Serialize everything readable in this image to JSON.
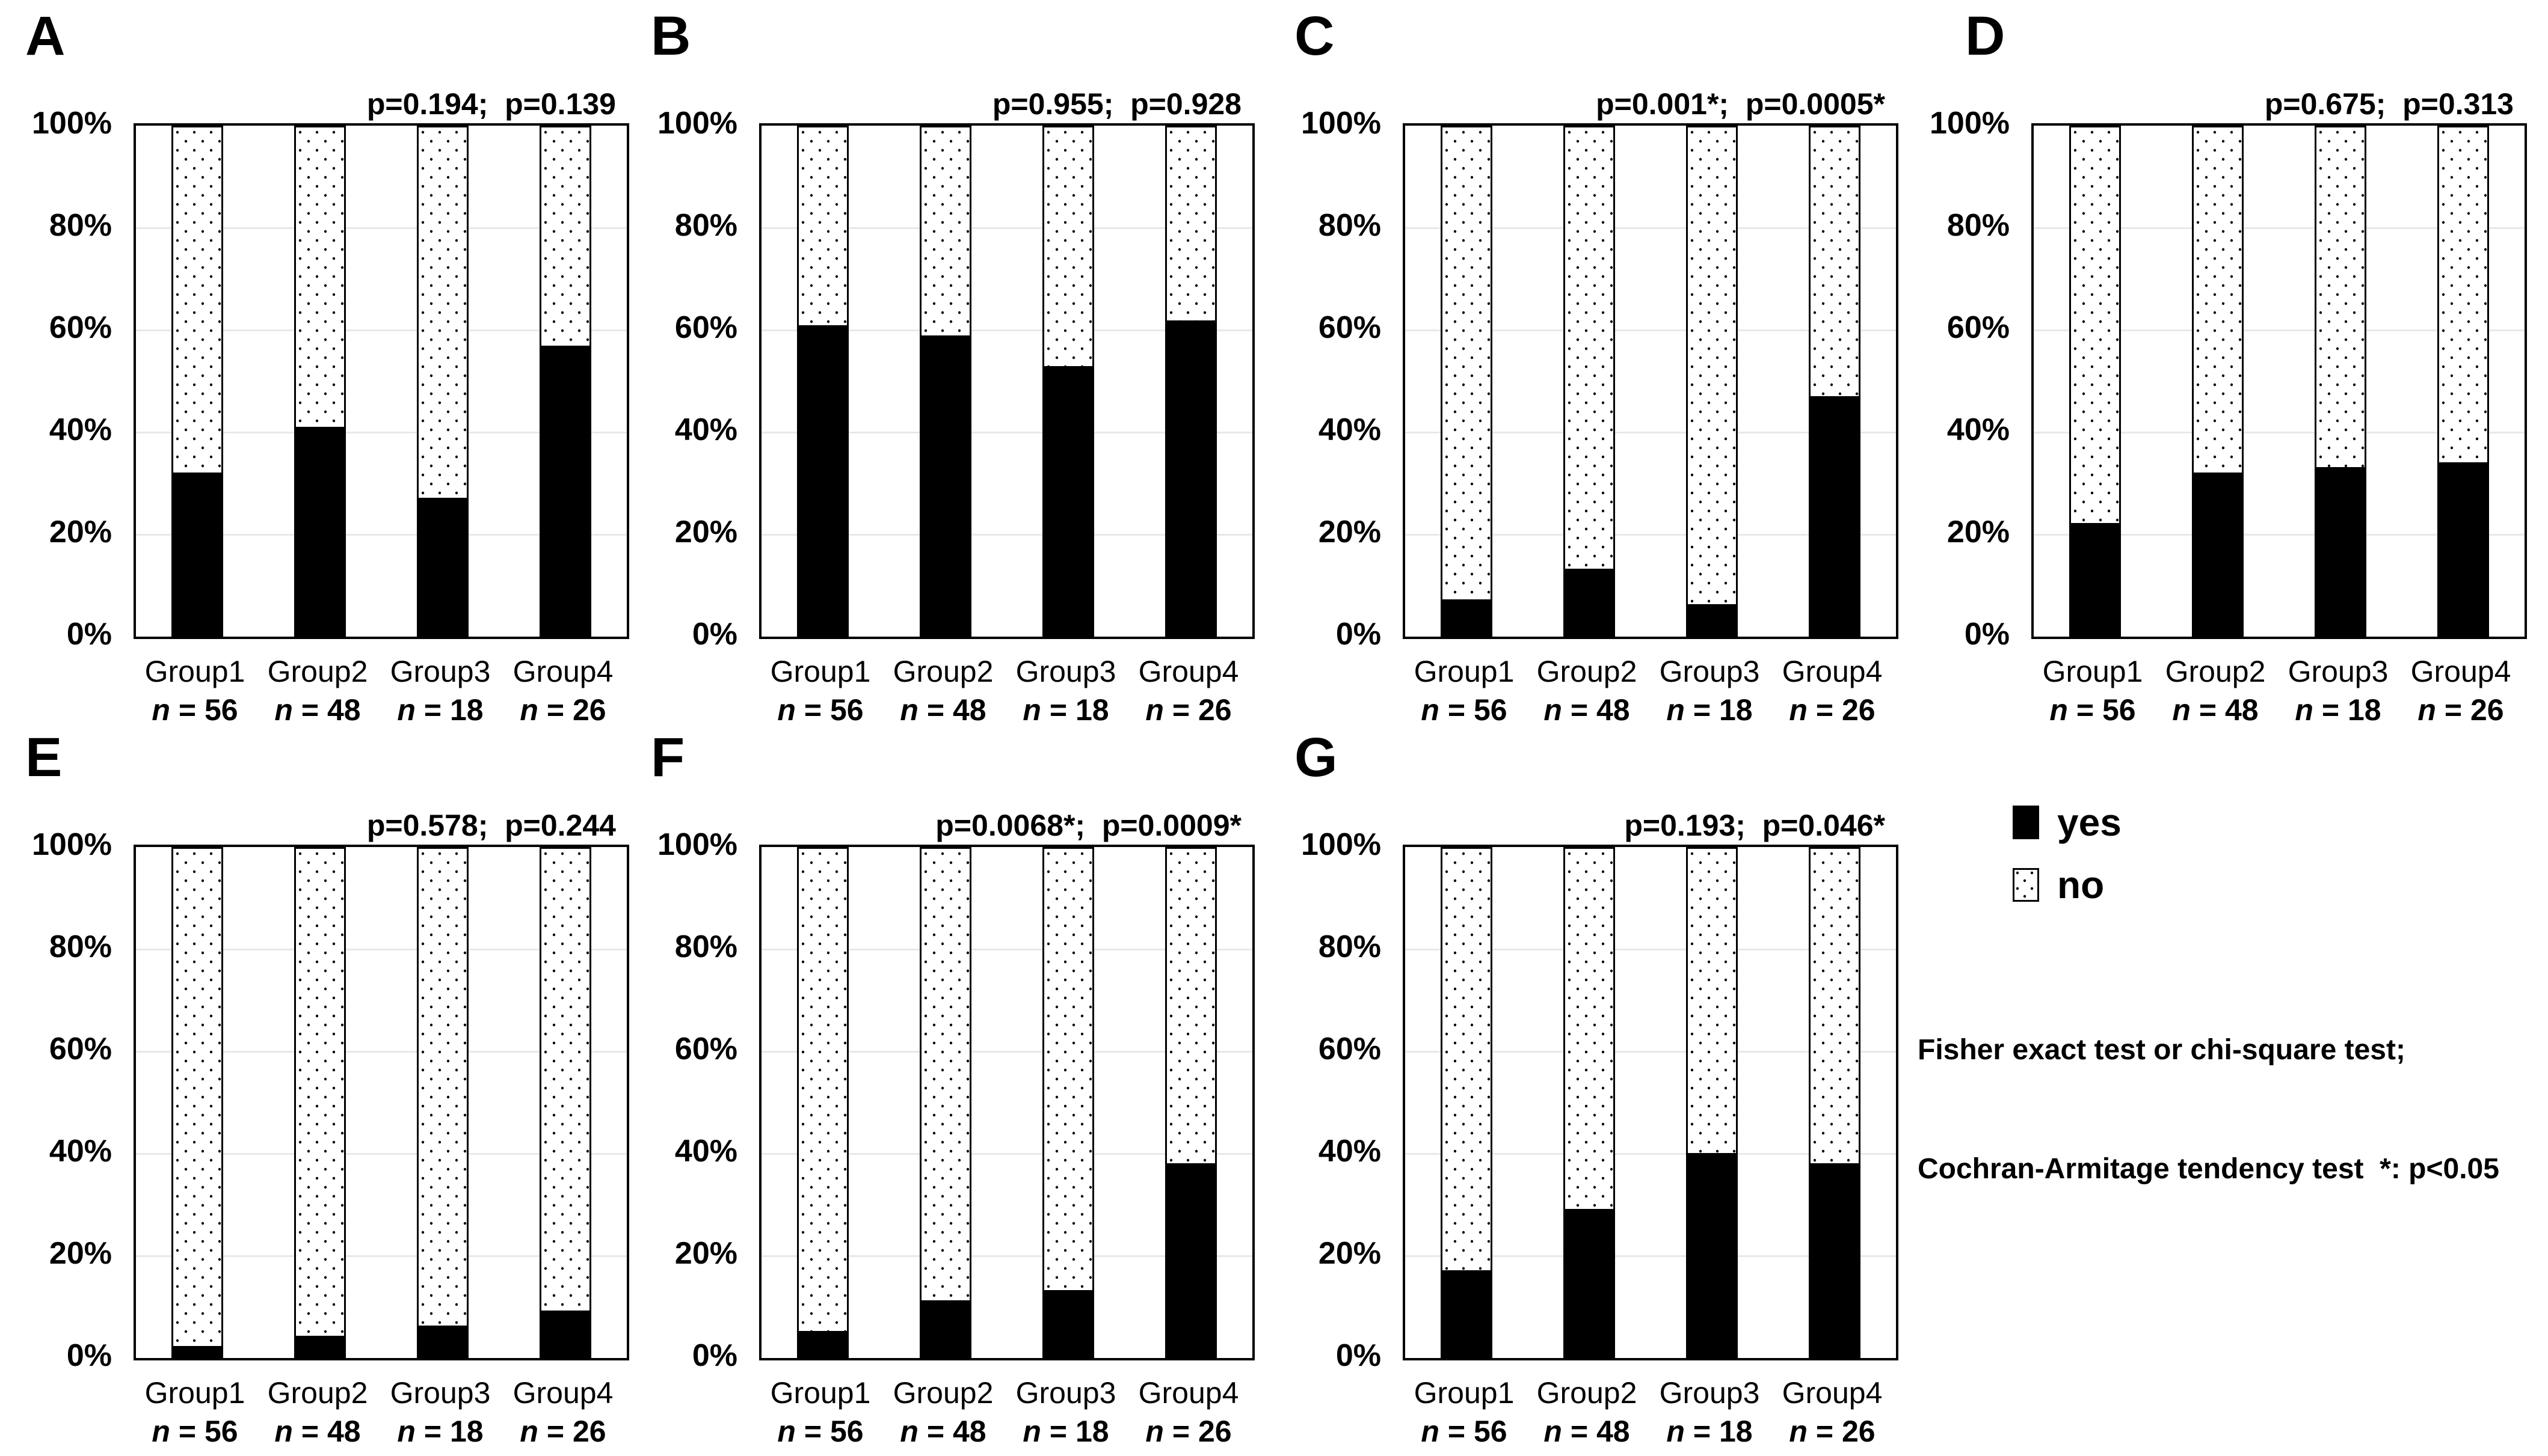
{
  "legend": {
    "items": [
      {
        "label": "yes",
        "swatch": "solid-black-square"
      },
      {
        "label": "no",
        "swatch": "dotted-white-square"
      }
    ]
  },
  "footnote": {
    "line1": "Fisher exact test or chi-square test;",
    "line2": "Cochran-Armitage tendency test  *: p<0.05"
  },
  "chart_data": [
    {
      "type": "bar",
      "stacked": true,
      "panel": "A",
      "p_annotation": "p=0.194;  p=0.139",
      "categories": [
        "Group1",
        "Group2",
        "Group3",
        "Group4"
      ],
      "n_labels": [
        "n = 56",
        "n = 48",
        "n = 18",
        "n = 26"
      ],
      "series": [
        {
          "name": "yes",
          "values": [
            32,
            41,
            27,
            57
          ]
        },
        {
          "name": "no",
          "values": [
            68,
            59,
            73,
            43
          ]
        }
      ],
      "yticks": [
        "0%",
        "20%",
        "40%",
        "60%",
        "80%",
        "100%"
      ],
      "ylim": [
        0,
        100
      ],
      "grid": true,
      "legend_position": "outside-right"
    },
    {
      "type": "bar",
      "stacked": true,
      "panel": "B",
      "p_annotation": "p=0.955;  p=0.928",
      "categories": [
        "Group1",
        "Group2",
        "Group3",
        "Group4"
      ],
      "n_labels": [
        "n = 56",
        "n = 48",
        "n = 18",
        "n = 26"
      ],
      "series": [
        {
          "name": "yes",
          "values": [
            61,
            59,
            53,
            62
          ]
        },
        {
          "name": "no",
          "values": [
            39,
            41,
            47,
            38
          ]
        }
      ],
      "yticks": [
        "0%",
        "20%",
        "40%",
        "60%",
        "80%",
        "100%"
      ],
      "ylim": [
        0,
        100
      ],
      "grid": true,
      "legend_position": "outside-right"
    },
    {
      "type": "bar",
      "stacked": true,
      "panel": "C",
      "p_annotation": "p=0.001*;  p=0.0005*",
      "categories": [
        "Group1",
        "Group2",
        "Group3",
        "Group4"
      ],
      "n_labels": [
        "n = 56",
        "n = 48",
        "n = 18",
        "n = 26"
      ],
      "series": [
        {
          "name": "yes",
          "values": [
            7,
            13,
            6,
            47
          ]
        },
        {
          "name": "no",
          "values": [
            93,
            87,
            94,
            53
          ]
        }
      ],
      "yticks": [
        "0%",
        "20%",
        "40%",
        "60%",
        "80%",
        "100%"
      ],
      "ylim": [
        0,
        100
      ],
      "grid": true,
      "legend_position": "outside-right"
    },
    {
      "type": "bar",
      "stacked": true,
      "panel": "D",
      "p_annotation": "p=0.675;  p=0.313",
      "categories": [
        "Group1",
        "Group2",
        "Group3",
        "Group4"
      ],
      "n_labels": [
        "n = 56",
        "n = 48",
        "n = 18",
        "n = 26"
      ],
      "series": [
        {
          "name": "yes",
          "values": [
            22,
            32,
            33,
            34
          ]
        },
        {
          "name": "no",
          "values": [
            78,
            68,
            67,
            66
          ]
        }
      ],
      "yticks": [
        "0%",
        "20%",
        "40%",
        "60%",
        "80%",
        "100%"
      ],
      "ylim": [
        0,
        100
      ],
      "grid": true,
      "legend_position": "outside-right"
    },
    {
      "type": "bar",
      "stacked": true,
      "panel": "E",
      "p_annotation": "p=0.578;  p=0.244",
      "categories": [
        "Group1",
        "Group2",
        "Group3",
        "Group4"
      ],
      "n_labels": [
        "n = 56",
        "n = 48",
        "n = 18",
        "n = 26"
      ],
      "series": [
        {
          "name": "yes",
          "values": [
            2,
            4,
            6,
            9
          ]
        },
        {
          "name": "no",
          "values": [
            98,
            96,
            94,
            91
          ]
        }
      ],
      "yticks": [
        "0%",
        "20%",
        "40%",
        "60%",
        "80%",
        "100%"
      ],
      "ylim": [
        0,
        100
      ],
      "grid": true,
      "legend_position": "outside-right"
    },
    {
      "type": "bar",
      "stacked": true,
      "panel": "F",
      "p_annotation": "p=0.0068*;  p=0.0009*",
      "categories": [
        "Group1",
        "Group2",
        "Group3",
        "Group4"
      ],
      "n_labels": [
        "n = 56",
        "n = 48",
        "n = 18",
        "n = 26"
      ],
      "series": [
        {
          "name": "yes",
          "values": [
            5,
            11,
            13,
            38
          ]
        },
        {
          "name": "no",
          "values": [
            95,
            89,
            87,
            62
          ]
        }
      ],
      "yticks": [
        "0%",
        "20%",
        "40%",
        "60%",
        "80%",
        "100%"
      ],
      "ylim": [
        0,
        100
      ],
      "grid": true,
      "legend_position": "outside-right"
    },
    {
      "type": "bar",
      "stacked": true,
      "panel": "G",
      "p_annotation": "p=0.193;  p=0.046*",
      "categories": [
        "Group1",
        "Group2",
        "Group3",
        "Group4"
      ],
      "n_labels": [
        "n = 56",
        "n = 48",
        "n = 18",
        "n = 26"
      ],
      "series": [
        {
          "name": "yes",
          "values": [
            17,
            29,
            40,
            38
          ]
        },
        {
          "name": "no",
          "values": [
            83,
            71,
            60,
            62
          ]
        }
      ],
      "yticks": [
        "0%",
        "20%",
        "40%",
        "60%",
        "80%",
        "100%"
      ],
      "ylim": [
        0,
        100
      ],
      "grid": true,
      "legend_position": "outside-right"
    }
  ]
}
